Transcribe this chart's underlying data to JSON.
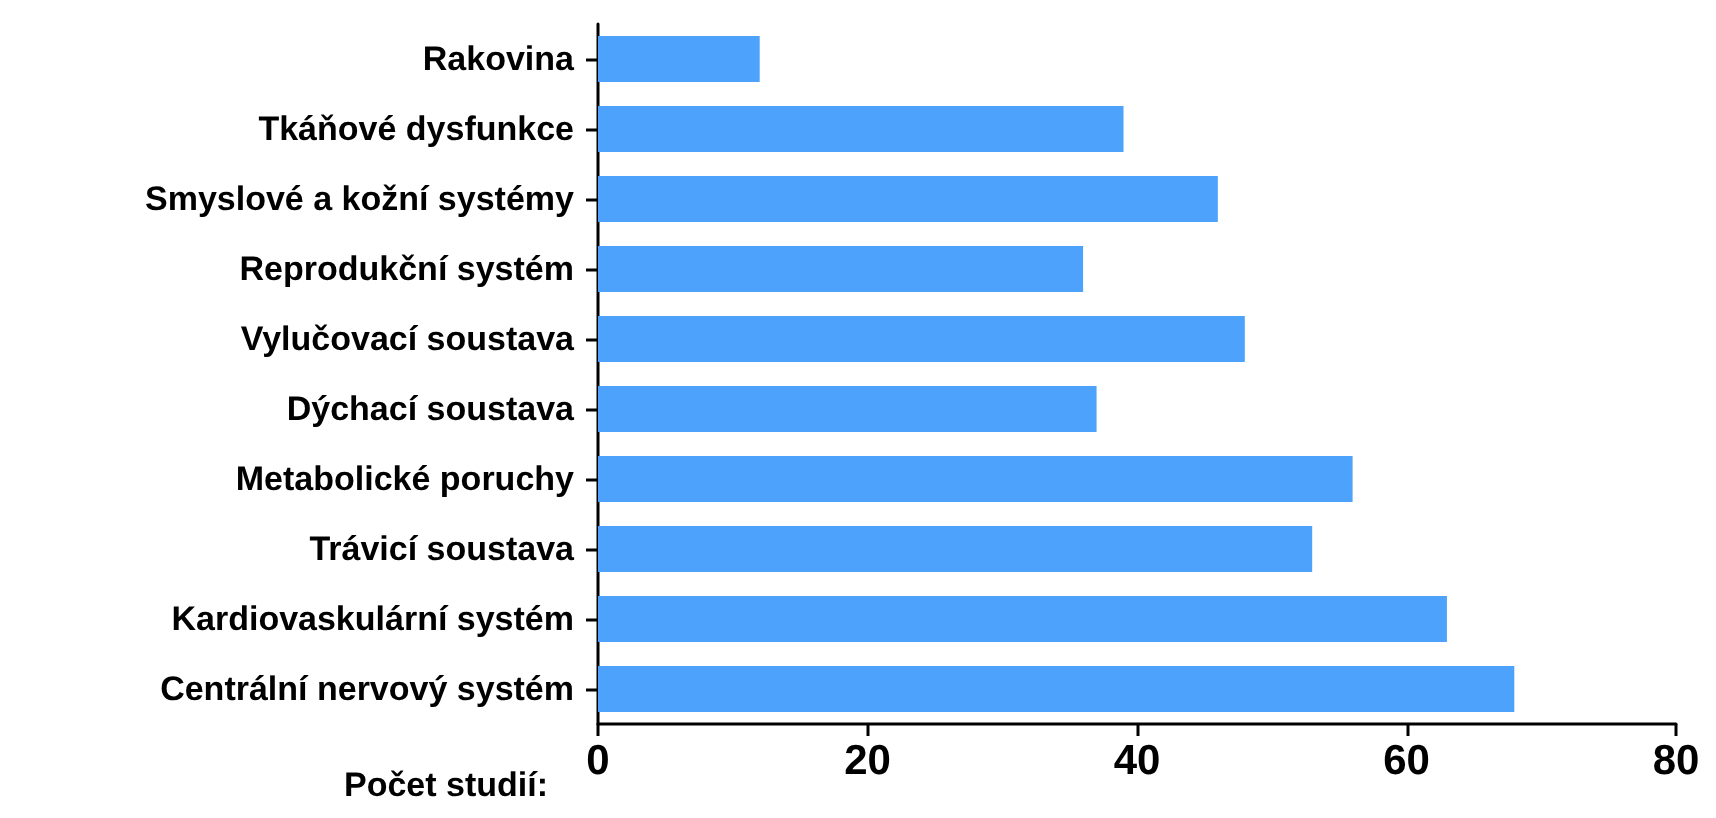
{
  "chart_data": {
    "type": "bar",
    "orientation": "horizontal",
    "xlabel": "Počet studií:",
    "categories": [
      "Rakovina",
      "Tkáňové dysfunkce",
      "Smyslové a kožní systémy",
      "Reprodukční systém",
      "Vylučovací soustava",
      "Dýchací soustava",
      "Metabolické poruchy",
      "Trávicí soustava",
      "Kardiovaskulární systém",
      "Centrální nervový systém"
    ],
    "values": [
      12,
      39,
      46,
      36,
      48,
      37,
      56,
      53,
      63,
      68
    ],
    "color": "#4da3fb",
    "xlim": [
      0,
      80
    ],
    "xticks": [
      0,
      20,
      40,
      60,
      80
    ]
  }
}
